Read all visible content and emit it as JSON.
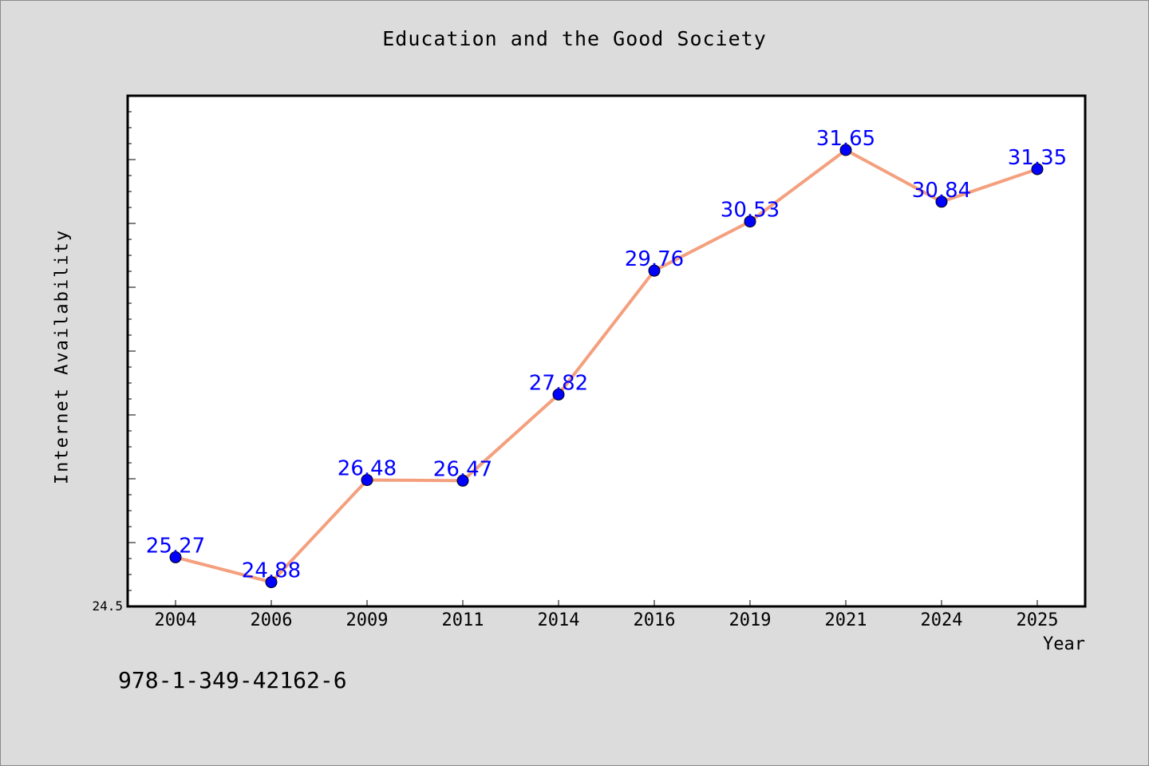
{
  "footnote": "978-1-349-42162-6",
  "chart_data": {
    "type": "line",
    "title": "Education and the Good Society",
    "xlabel": "Year",
    "ylabel": "Internet Availability",
    "categories": [
      "2004",
      "2006",
      "2009",
      "2011",
      "2014",
      "2016",
      "2019",
      "2021",
      "2024",
      "2025"
    ],
    "series": [
      {
        "values": [
          25.27,
          24.88,
          26.48,
          26.47,
          27.82,
          29.76,
          30.53,
          31.65,
          30.84,
          31.35
        ],
        "line_color": "#f4a07e",
        "marker_color": "#0000ff",
        "label_color": "#0000ff"
      }
    ],
    "ylim": [
      24.5,
      32.5
    ],
    "y_tick_labels": [
      "24.5"
    ],
    "grid": false
  }
}
